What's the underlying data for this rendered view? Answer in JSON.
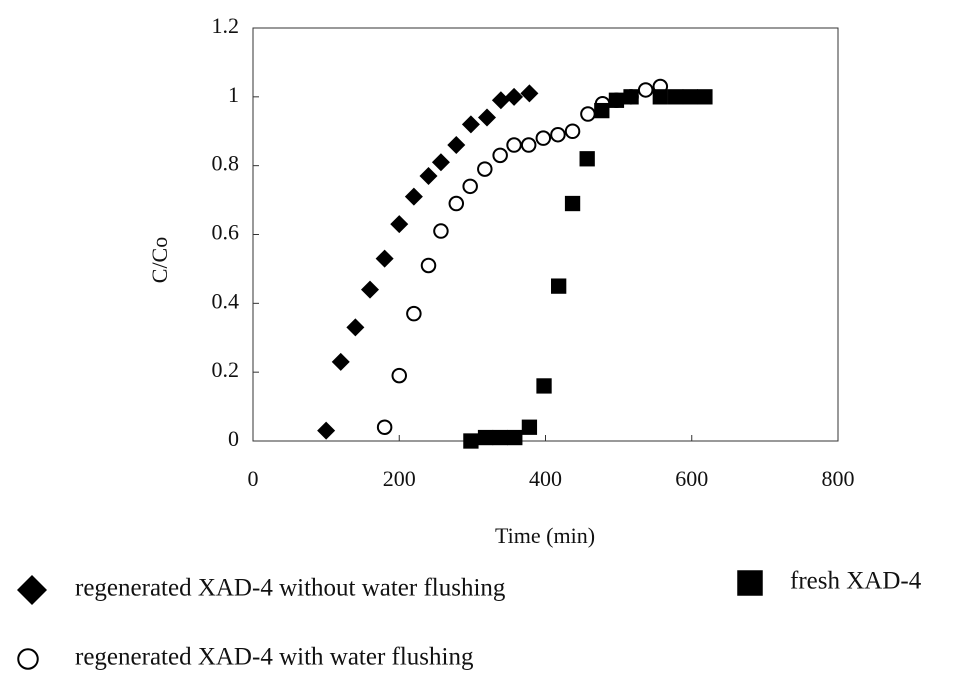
{
  "chart_data": {
    "type": "scatter",
    "x_label": "Time (min)",
    "y_label": "C/Co",
    "xlim": [
      0,
      800
    ],
    "xticks": [
      0,
      200,
      400,
      600,
      800
    ],
    "ylim": [
      0,
      1.2
    ],
    "yticks": [
      0,
      0.2,
      0.4,
      0.6,
      0.8,
      1,
      1.2
    ],
    "series": [
      {
        "name": "regenerated XAD-4 without water flushing",
        "marker": "diamond",
        "color": "#000000",
        "x": [
          100,
          120,
          140,
          160,
          180,
          200,
          220,
          240,
          257,
          278,
          298,
          320,
          339,
          357,
          378
        ],
        "values": [
          0.03,
          0.23,
          0.33,
          0.44,
          0.53,
          0.63,
          0.71,
          0.77,
          0.81,
          0.86,
          0.92,
          0.94,
          0.99,
          1.0,
          1.01
        ]
      },
      {
        "name": "fresh XAD-4",
        "marker": "square",
        "color": "#000000",
        "x": [
          298,
          318,
          338,
          358,
          378,
          398,
          418,
          437,
          457,
          477,
          497,
          517,
          557,
          578,
          598,
          618
        ],
        "values": [
          0,
          0.01,
          0.01,
          0.01,
          0.04,
          0.16,
          0.45,
          0.69,
          0.82,
          0.96,
          0.99,
          1.0,
          1.0,
          1.0,
          1.0,
          1.0
        ]
      },
      {
        "name": "regenerated XAD-4 with water flushing",
        "marker": "circle",
        "color": "#000000",
        "x": [
          180,
          200,
          220,
          240,
          257,
          278,
          297,
          317,
          338,
          357,
          377,
          397,
          417,
          437,
          458,
          478,
          497,
          517,
          537,
          557
        ],
        "values": [
          0.04,
          0.19,
          0.37,
          0.51,
          0.61,
          0.69,
          0.74,
          0.79,
          0.83,
          0.86,
          0.86,
          0.88,
          0.89,
          0.9,
          0.95,
          0.98,
          0.99,
          1.0,
          1.02,
          1.03
        ]
      }
    ]
  }
}
